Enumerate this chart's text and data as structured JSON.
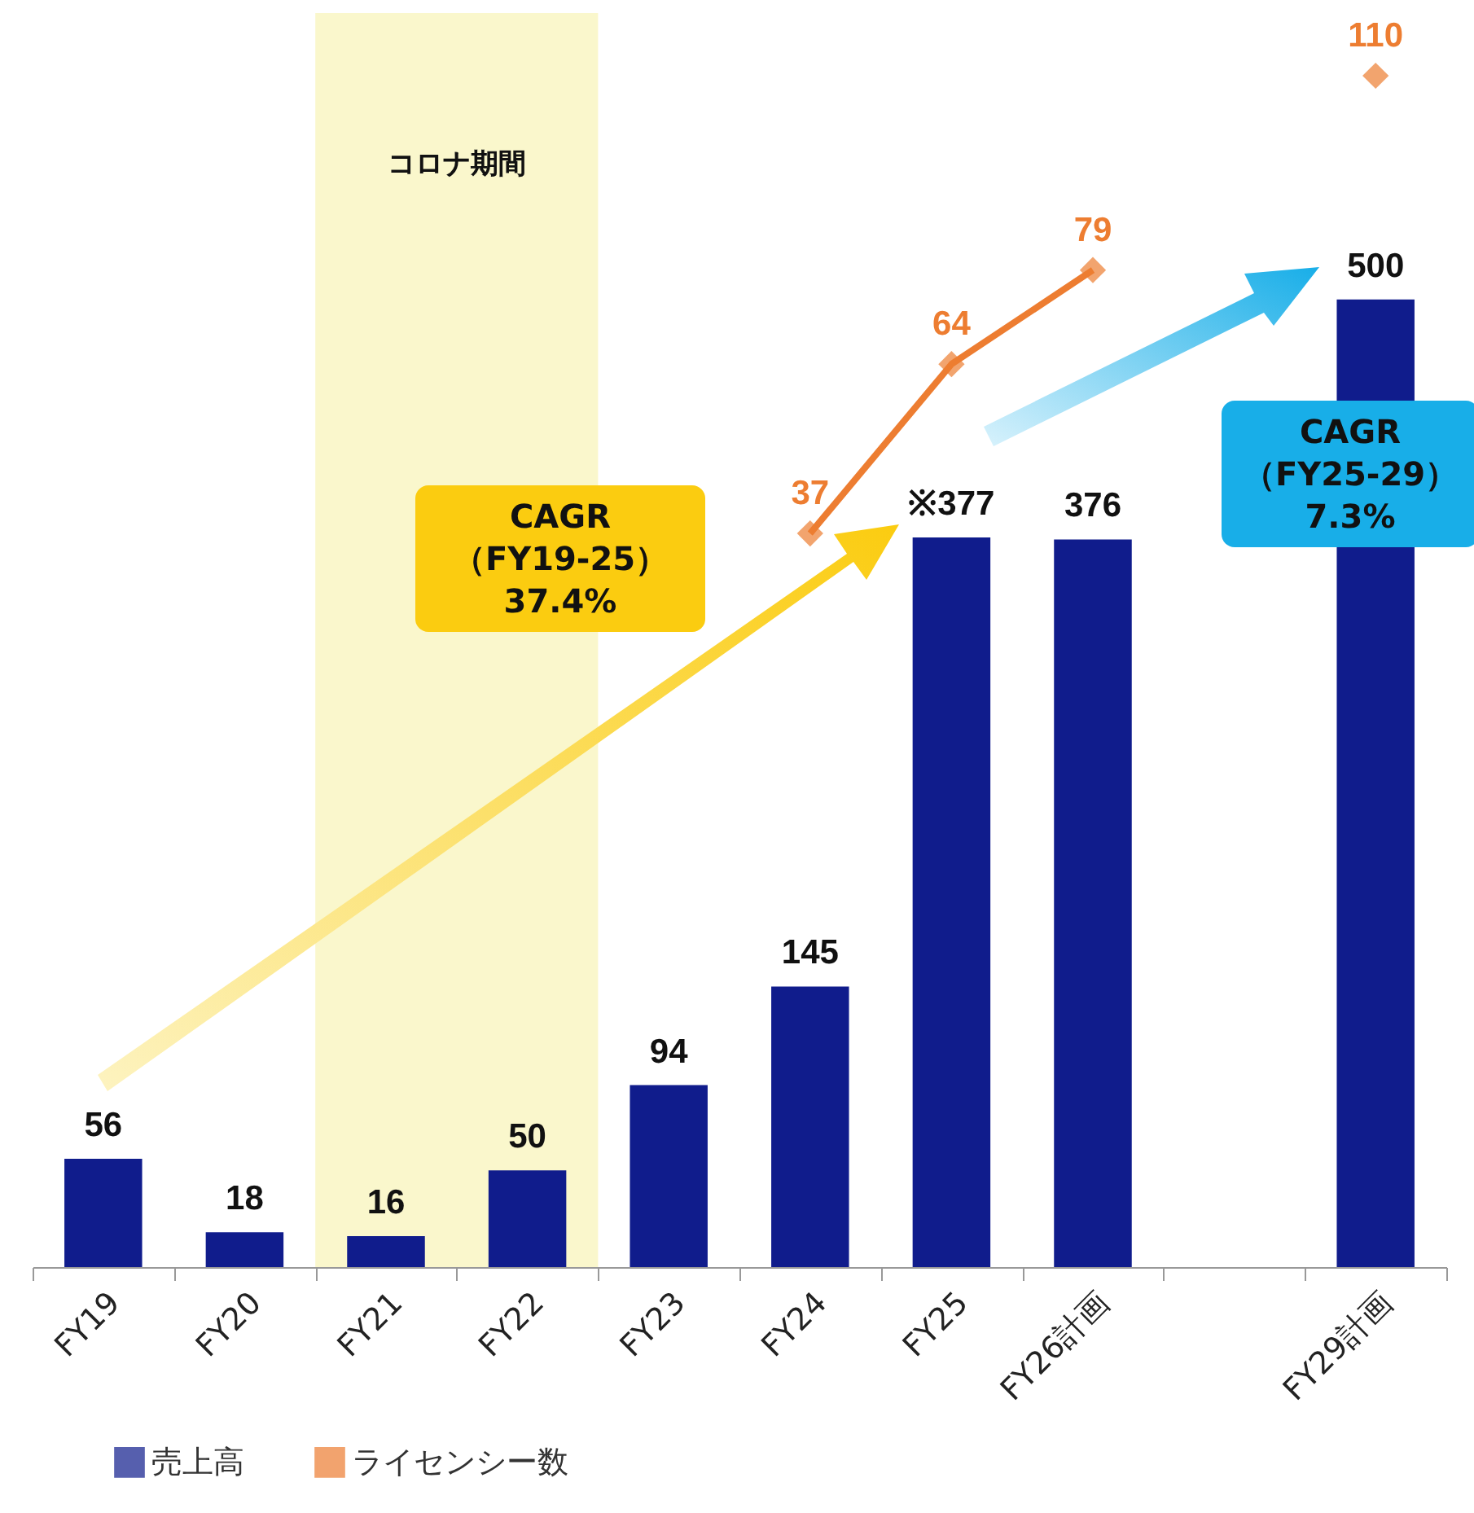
{
  "chart_data": {
    "type": "bar",
    "categories": [
      "FY19",
      "FY20",
      "FY21",
      "FY22",
      "FY23",
      "FY24",
      "FY25",
      "FY26計画",
      null,
      "FY29計画"
    ],
    "series": [
      {
        "name": "売上高",
        "color": "#101c8c",
        "values": [
          56,
          18,
          16,
          50,
          94,
          145,
          377,
          376,
          null,
          500
        ],
        "value_labels": [
          "56",
          "18",
          "16",
          "50",
          "94",
          "145",
          "※377",
          "376",
          null,
          "500"
        ]
      },
      {
        "name": "ライセンシー数",
        "type": "line",
        "axis": "y2",
        "color": "#ed7d31",
        "marker": "diamond",
        "values": [
          null,
          null,
          null,
          null,
          null,
          37,
          64,
          79,
          null,
          110
        ],
        "value_labels": [
          null,
          null,
          null,
          null,
          null,
          "37",
          "64",
          "79",
          null,
          "110"
        ]
      }
    ],
    "ylim": [
      0,
      648
    ],
    "y2lim": [
      -80,
      120
    ],
    "bands": [
      {
        "axis": "x",
        "from": "FY21",
        "to": "FY22",
        "label": "コロナ期間",
        "color": "#faf7cc"
      }
    ],
    "annotations": [
      "CAGR\n（FY19-25）\n37.4%",
      "CAGR\n（FY25-29）\n7.3%"
    ],
    "legend": "bottom left",
    "grid": false,
    "tick_labels": "x"
  }
}
